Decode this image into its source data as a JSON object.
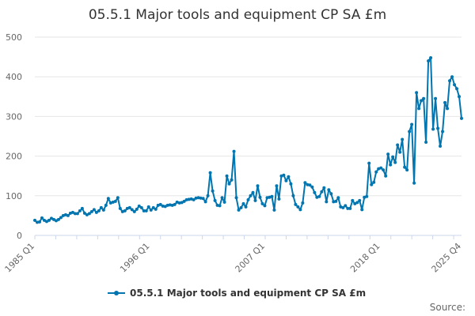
{
  "chart_data": {
    "type": "line",
    "title": "05.5.1 Major tools and equipment CP SA £m",
    "xlabel": "",
    "ylabel": "",
    "ylim": [
      0,
      500
    ],
    "yticks": [
      "0",
      "100",
      "200",
      "300",
      "400",
      "500"
    ],
    "xticks": [
      "1985 Q1",
      "1996 Q1",
      "2007 Q1",
      "2018 Q1",
      "2025 Q4"
    ],
    "x_range": [
      "1985 Q1",
      "2025 Q4"
    ],
    "grid": true,
    "legend": "bottom",
    "series": [
      {
        "name": "05.5.1 Major tools and equipment CP SA £m",
        "color": "#0075b0",
        "values": [
          38,
          33,
          34,
          44,
          38,
          35,
          38,
          43,
          40,
          37,
          40,
          45,
          50,
          52,
          50,
          56,
          58,
          55,
          55,
          62,
          68,
          56,
          52,
          55,
          60,
          65,
          58,
          62,
          70,
          64,
          76,
          93,
          82,
          84,
          86,
          95,
          68,
          60,
          62,
          68,
          70,
          65,
          60,
          66,
          74,
          70,
          62,
          62,
          72,
          64,
          70,
          66,
          76,
          78,
          74,
          73,
          76,
          77,
          76,
          78,
          84,
          82,
          83,
          86,
          90,
          91,
          92,
          90,
          94,
          95,
          94,
          93,
          85,
          100,
          158,
          112,
          88,
          76,
          75,
          95,
          84,
          150,
          130,
          140,
          212,
          95,
          64,
          70,
          80,
          72,
          90,
          100,
          108,
          88,
          125,
          96,
          80,
          75,
          95,
          96,
          98,
          64,
          125,
          92,
          150,
          152,
          138,
          148,
          130,
          100,
          78,
          72,
          65,
          82,
          133,
          128,
          127,
          122,
          108,
          96,
          98,
          110,
          120,
          85,
          115,
          105,
          85,
          86,
          95,
          72,
          70,
          75,
          68,
          68,
          88,
          80,
          83,
          88,
          65,
          96,
          98,
          182,
          128,
          134,
          160,
          168,
          170,
          165,
          150,
          205,
          178,
          198,
          184,
          228,
          210,
          242,
          172,
          165,
          262,
          280,
          132,
          360,
          320,
          340,
          345,
          235,
          440,
          448,
          268,
          345,
          270,
          225,
          262,
          335,
          320,
          390,
          400,
          380,
          370,
          350,
          295
        ]
      }
    ],
    "source_label": "Source:"
  }
}
